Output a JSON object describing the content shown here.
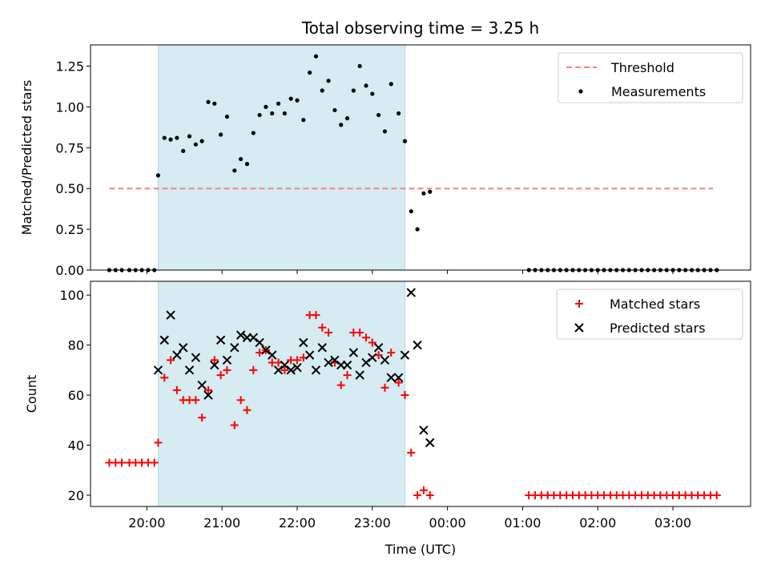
{
  "chart_data": [
    {
      "type": "scatter",
      "title": "Total observing time = 3.25 h",
      "xlabel": "",
      "ylabel": "Matched/Predicted stars",
      "xlim": [
        "19:15",
        "04:02"
      ],
      "ylim": [
        0,
        1.38
      ],
      "yticks": [
        "0.00",
        "0.25",
        "0.50",
        "0.75",
        "1.00",
        "1.25"
      ],
      "shaded_interval": [
        "20:09",
        "23:26"
      ],
      "colors": {
        "shade": "#add8e6",
        "threshold": "#ff7f7f",
        "measurements": "#000000"
      },
      "legend_position": "upper right",
      "series": [
        {
          "name": "Threshold",
          "style": "dashed-line",
          "x": [
            "19:30",
            "23:58",
            "03:32"
          ],
          "y": [
            0.5,
            0.5,
            0.5
          ]
        },
        {
          "name": "Measurements",
          "style": "dot",
          "points": [
            [
              "19:30",
              0
            ],
            [
              "19:35",
              0
            ],
            [
              "19:40",
              0
            ],
            [
              "19:46",
              0
            ],
            [
              "19:51",
              0
            ],
            [
              "19:56",
              0
            ],
            [
              "20:01",
              0
            ],
            [
              "20:06",
              0
            ],
            [
              "20:09",
              0.58
            ],
            [
              "20:14",
              0.81
            ],
            [
              "20:19",
              0.8
            ],
            [
              "20:24",
              0.81
            ],
            [
              "20:29",
              0.73
            ],
            [
              "20:34",
              0.82
            ],
            [
              "20:39",
              0.77
            ],
            [
              "20:44",
              0.79
            ],
            [
              "20:49",
              1.03
            ],
            [
              "20:54",
              1.02
            ],
            [
              "20:59",
              0.83
            ],
            [
              "21:04",
              0.94
            ],
            [
              "21:10",
              0.61
            ],
            [
              "21:15",
              0.68
            ],
            [
              "21:20",
              0.65
            ],
            [
              "21:25",
              0.84
            ],
            [
              "21:30",
              0.95
            ],
            [
              "21:35",
              1.0
            ],
            [
              "21:40",
              0.96
            ],
            [
              "21:45",
              1.02
            ],
            [
              "21:50",
              0.96
            ],
            [
              "21:55",
              1.05
            ],
            [
              "22:00",
              1.04
            ],
            [
              "22:05",
              0.92
            ],
            [
              "22:10",
              1.21
            ],
            [
              "22:15",
              1.31
            ],
            [
              "22:20",
              1.1
            ],
            [
              "22:25",
              1.16
            ],
            [
              "22:30",
              0.98
            ],
            [
              "22:35",
              0.89
            ],
            [
              "22:40",
              0.93
            ],
            [
              "22:45",
              1.1
            ],
            [
              "22:50",
              1.25
            ],
            [
              "22:55",
              1.13
            ],
            [
              "23:00",
              1.08
            ],
            [
              "23:05",
              0.95
            ],
            [
              "23:10",
              0.85
            ],
            [
              "23:15",
              1.14
            ],
            [
              "23:21",
              0.96
            ],
            [
              "23:26",
              0.79
            ],
            [
              "23:31",
              0.36
            ],
            [
              "23:36",
              0.25
            ],
            [
              "23:41",
              0.47
            ],
            [
              "23:46",
              0.48
            ],
            [
              "01:05",
              0
            ],
            [
              "01:10",
              0
            ],
            [
              "01:15",
              0
            ],
            [
              "01:20",
              0
            ],
            [
              "01:25",
              0
            ],
            [
              "01:30",
              0
            ],
            [
              "01:35",
              0
            ],
            [
              "01:40",
              0
            ],
            [
              "01:45",
              0
            ],
            [
              "01:50",
              0
            ],
            [
              "01:55",
              0
            ],
            [
              "02:00",
              0
            ],
            [
              "02:05",
              0
            ],
            [
              "02:10",
              0
            ],
            [
              "02:15",
              0
            ],
            [
              "02:20",
              0
            ],
            [
              "02:25",
              0
            ],
            [
              "02:30",
              0
            ],
            [
              "02:35",
              0
            ],
            [
              "02:40",
              0
            ],
            [
              "02:45",
              0
            ],
            [
              "02:50",
              0
            ],
            [
              "02:55",
              0
            ],
            [
              "03:00",
              0
            ],
            [
              "03:05",
              0
            ],
            [
              "03:10",
              0
            ],
            [
              "03:15",
              0
            ],
            [
              "03:20",
              0
            ],
            [
              "03:25",
              0
            ],
            [
              "03:30",
              0
            ],
            [
              "03:35",
              0
            ]
          ]
        }
      ]
    },
    {
      "type": "scatter",
      "title": "",
      "xlabel": "Time (UTC)",
      "ylabel": "Count",
      "xlim": [
        "19:15",
        "04:02"
      ],
      "ylim": [
        15.5,
        105.5
      ],
      "yticks": [
        "20",
        "40",
        "60",
        "80",
        "100"
      ],
      "xticks": [
        "20:00",
        "21:00",
        "22:00",
        "23:00",
        "00:00",
        "01:00",
        "02:00",
        "03:00"
      ],
      "shaded_interval": [
        "20:09",
        "23:26"
      ],
      "colors": {
        "shade": "#add8e6",
        "matched": "#ff0000",
        "predicted": "#000000"
      },
      "legend_position": "upper right",
      "series": [
        {
          "name": "Matched stars",
          "marker": "+",
          "points": [
            [
              "19:30",
              33
            ],
            [
              "19:35",
              33
            ],
            [
              "19:40",
              33
            ],
            [
              "19:46",
              33
            ],
            [
              "19:51",
              33
            ],
            [
              "19:56",
              33
            ],
            [
              "20:01",
              33
            ],
            [
              "20:06",
              33
            ],
            [
              "20:09",
              41
            ],
            [
              "20:14",
              67
            ],
            [
              "20:19",
              74
            ],
            [
              "20:24",
              62
            ],
            [
              "20:29",
              58
            ],
            [
              "20:34",
              58
            ],
            [
              "20:39",
              58
            ],
            [
              "20:44",
              51
            ],
            [
              "20:49",
              62
            ],
            [
              "20:54",
              74
            ],
            [
              "20:59",
              68
            ],
            [
              "21:04",
              70
            ],
            [
              "21:10",
              48
            ],
            [
              "21:15",
              58
            ],
            [
              "21:20",
              54
            ],
            [
              "21:25",
              70
            ],
            [
              "21:30",
              77
            ],
            [
              "21:35",
              78
            ],
            [
              "21:40",
              73
            ],
            [
              "21:45",
              73
            ],
            [
              "21:50",
              70
            ],
            [
              "21:55",
              74
            ],
            [
              "22:00",
              74
            ],
            [
              "22:05",
              75
            ],
            [
              "22:10",
              92
            ],
            [
              "22:15",
              92
            ],
            [
              "22:20",
              87
            ],
            [
              "22:25",
              85
            ],
            [
              "22:30",
              73
            ],
            [
              "22:35",
              64
            ],
            [
              "22:40",
              68
            ],
            [
              "22:45",
              85
            ],
            [
              "22:50",
              85
            ],
            [
              "22:55",
              83
            ],
            [
              "23:00",
              81
            ],
            [
              "23:05",
              76
            ],
            [
              "23:10",
              63
            ],
            [
              "23:15",
              77
            ],
            [
              "23:21",
              65
            ],
            [
              "23:26",
              60
            ],
            [
              "23:31",
              37
            ],
            [
              "23:36",
              20
            ],
            [
              "23:41",
              22
            ],
            [
              "23:46",
              20
            ],
            [
              "01:05",
              20
            ],
            [
              "01:10",
              20
            ],
            [
              "01:15",
              20
            ],
            [
              "01:20",
              20
            ],
            [
              "01:25",
              20
            ],
            [
              "01:30",
              20
            ],
            [
              "01:35",
              20
            ],
            [
              "01:40",
              20
            ],
            [
              "01:45",
              20
            ],
            [
              "01:50",
              20
            ],
            [
              "01:55",
              20
            ],
            [
              "02:00",
              20
            ],
            [
              "02:05",
              20
            ],
            [
              "02:10",
              20
            ],
            [
              "02:15",
              20
            ],
            [
              "02:20",
              20
            ],
            [
              "02:25",
              20
            ],
            [
              "02:30",
              20
            ],
            [
              "02:35",
              20
            ],
            [
              "02:40",
              20
            ],
            [
              "02:45",
              20
            ],
            [
              "02:50",
              20
            ],
            [
              "02:55",
              20
            ],
            [
              "03:00",
              20
            ],
            [
              "03:05",
              20
            ],
            [
              "03:10",
              20
            ],
            [
              "03:15",
              20
            ],
            [
              "03:20",
              20
            ],
            [
              "03:25",
              20
            ],
            [
              "03:30",
              20
            ],
            [
              "03:35",
              20
            ]
          ]
        },
        {
          "name": "Predicted stars",
          "marker": "x",
          "points": [
            [
              "20:09",
              70
            ],
            [
              "20:14",
              82
            ],
            [
              "20:19",
              92
            ],
            [
              "20:24",
              76
            ],
            [
              "20:29",
              79
            ],
            [
              "20:34",
              70
            ],
            [
              "20:39",
              75
            ],
            [
              "20:44",
              64
            ],
            [
              "20:49",
              60
            ],
            [
              "20:54",
              72
            ],
            [
              "20:59",
              82
            ],
            [
              "21:04",
              74
            ],
            [
              "21:10",
              79
            ],
            [
              "21:15",
              84
            ],
            [
              "21:20",
              83
            ],
            [
              "21:25",
              83
            ],
            [
              "21:30",
              81
            ],
            [
              "21:35",
              78
            ],
            [
              "21:40",
              76
            ],
            [
              "21:45",
              70
            ],
            [
              "21:50",
              72
            ],
            [
              "21:55",
              70
            ],
            [
              "22:00",
              71
            ],
            [
              "22:05",
              81
            ],
            [
              "22:10",
              76
            ],
            [
              "22:15",
              70
            ],
            [
              "22:20",
              79
            ],
            [
              "22:25",
              73
            ],
            [
              "22:30",
              74
            ],
            [
              "22:35",
              72
            ],
            [
              "22:40",
              72
            ],
            [
              "22:45",
              77
            ],
            [
              "22:50",
              68
            ],
            [
              "22:55",
              73
            ],
            [
              "23:00",
              75
            ],
            [
              "23:05",
              79
            ],
            [
              "23:10",
              74
            ],
            [
              "23:15",
              67
            ],
            [
              "23:21",
              67
            ],
            [
              "23:26",
              76
            ],
            [
              "23:31",
              101
            ],
            [
              "23:36",
              80
            ],
            [
              "23:41",
              46
            ],
            [
              "23:46",
              41
            ]
          ]
        }
      ]
    }
  ]
}
